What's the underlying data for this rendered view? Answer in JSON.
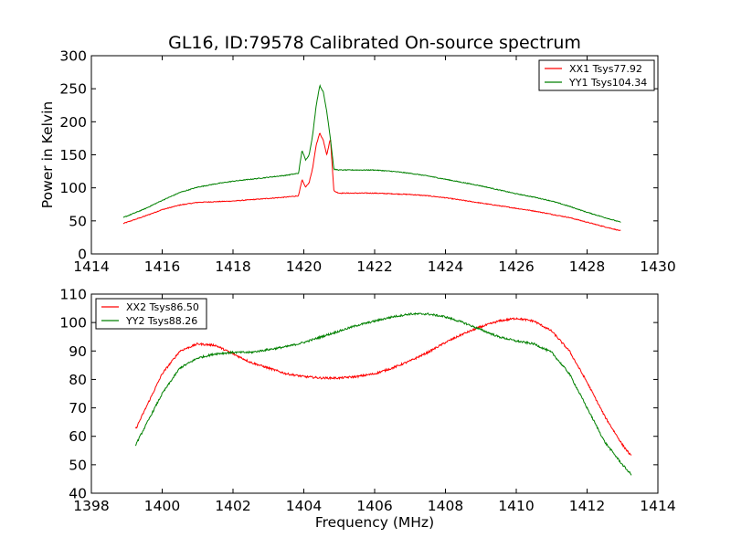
{
  "figure": {
    "title": "GL16, ID:79578 Calibrated On-source spectrum"
  },
  "chart_data": [
    {
      "type": "line",
      "title": "GL16, ID:79578 Calibrated On-source spectrum",
      "xlabel": "",
      "ylabel": "Power in Kelvin",
      "xlim": [
        1414,
        1430
      ],
      "ylim": [
        0,
        300
      ],
      "xticks": [
        1414,
        1416,
        1418,
        1420,
        1422,
        1424,
        1426,
        1428,
        1430
      ],
      "yticks": [
        0,
        50,
        100,
        150,
        200,
        250,
        300
      ],
      "grid": false,
      "legend_position": "top-right",
      "series": [
        {
          "name": "XX1 Tsys77.92",
          "color": "#ff0000",
          "x": [
            1414.9,
            1415.5,
            1416.0,
            1416.5,
            1417.0,
            1417.5,
            1418.0,
            1418.5,
            1419.0,
            1419.5,
            1419.85,
            1419.95,
            1420.05,
            1420.15,
            1420.25,
            1420.35,
            1420.45,
            1420.55,
            1420.65,
            1420.75,
            1420.85,
            1421.0,
            1421.5,
            1422.0,
            1422.5,
            1423.0,
            1423.5,
            1424.0,
            1424.5,
            1425.0,
            1425.5,
            1426.0,
            1426.5,
            1427.0,
            1427.5,
            1428.0,
            1428.5,
            1428.95
          ],
          "values": [
            46,
            57,
            67,
            74,
            78,
            79,
            80,
            82,
            84,
            86,
            88,
            112,
            101,
            108,
            130,
            165,
            183,
            172,
            150,
            175,
            95,
            92,
            92,
            92,
            91,
            90,
            88,
            85,
            81,
            77,
            73,
            69,
            65,
            60,
            55,
            48,
            41,
            35
          ]
        },
        {
          "name": "YY1 Tsys104.34",
          "color": "#008000",
          "x": [
            1414.9,
            1415.5,
            1416.0,
            1416.5,
            1417.0,
            1417.5,
            1418.0,
            1418.5,
            1419.0,
            1419.5,
            1419.85,
            1419.95,
            1420.05,
            1420.15,
            1420.25,
            1420.35,
            1420.45,
            1420.55,
            1420.65,
            1420.75,
            1420.85,
            1421.0,
            1421.5,
            1422.0,
            1422.5,
            1423.0,
            1423.5,
            1424.0,
            1424.5,
            1425.0,
            1425.5,
            1426.0,
            1426.5,
            1427.0,
            1427.5,
            1428.0,
            1428.5,
            1428.95
          ],
          "values": [
            55,
            68,
            81,
            93,
            101,
            106,
            110,
            113,
            116,
            119,
            122,
            157,
            142,
            150,
            180,
            225,
            255,
            245,
            215,
            175,
            128,
            127,
            127,
            127,
            125,
            122,
            118,
            113,
            108,
            103,
            97,
            91,
            86,
            80,
            72,
            63,
            55,
            48
          ]
        }
      ]
    },
    {
      "type": "line",
      "title": "",
      "xlabel": "Frequency (MHz)",
      "ylabel": "",
      "xlim": [
        1398,
        1414
      ],
      "ylim": [
        40,
        110
      ],
      "xticks": [
        1398,
        1400,
        1402,
        1404,
        1406,
        1408,
        1410,
        1412,
        1414
      ],
      "yticks": [
        40,
        50,
        60,
        70,
        80,
        90,
        100,
        110
      ],
      "grid": false,
      "legend_position": "top-left",
      "series": [
        {
          "name": "XX2 Tsys86.50",
          "color": "#ff0000",
          "x": [
            1399.25,
            1399.5,
            1400.0,
            1400.5,
            1401.0,
            1401.5,
            1402.0,
            1402.5,
            1403.0,
            1403.5,
            1404.0,
            1404.5,
            1405.0,
            1405.5,
            1406.0,
            1406.5,
            1407.0,
            1407.5,
            1408.0,
            1408.5,
            1409.0,
            1409.5,
            1410.0,
            1410.5,
            1411.0,
            1411.5,
            1412.0,
            1412.5,
            1413.0,
            1413.25
          ],
          "values": [
            62.5,
            69,
            82,
            90,
            92.5,
            92,
            89,
            86,
            84,
            82,
            81,
            80.5,
            80.5,
            81,
            82,
            84,
            86.5,
            89.5,
            93,
            96,
            98.5,
            100.5,
            101.5,
            100.5,
            97,
            90,
            79,
            67,
            57,
            53
          ]
        },
        {
          "name": "YY2 Tsys88.26",
          "color": "#008000",
          "x": [
            1399.25,
            1399.5,
            1400.0,
            1400.5,
            1401.0,
            1401.5,
            1402.0,
            1402.5,
            1403.0,
            1403.5,
            1404.0,
            1404.5,
            1405.0,
            1405.5,
            1406.0,
            1406.5,
            1407.0,
            1407.5,
            1408.0,
            1408.5,
            1409.0,
            1409.5,
            1410.0,
            1410.5,
            1411.0,
            1411.5,
            1412.0,
            1412.5,
            1413.0,
            1413.25
          ],
          "values": [
            57,
            63,
            75,
            84,
            87.5,
            89,
            89.5,
            89.5,
            90.5,
            91.5,
            93,
            95,
            97,
            99,
            100.5,
            102,
            103,
            103,
            102,
            100,
            97.5,
            95,
            93.5,
            92.5,
            89.5,
            82,
            70,
            58,
            50,
            46.5
          ]
        }
      ]
    }
  ]
}
